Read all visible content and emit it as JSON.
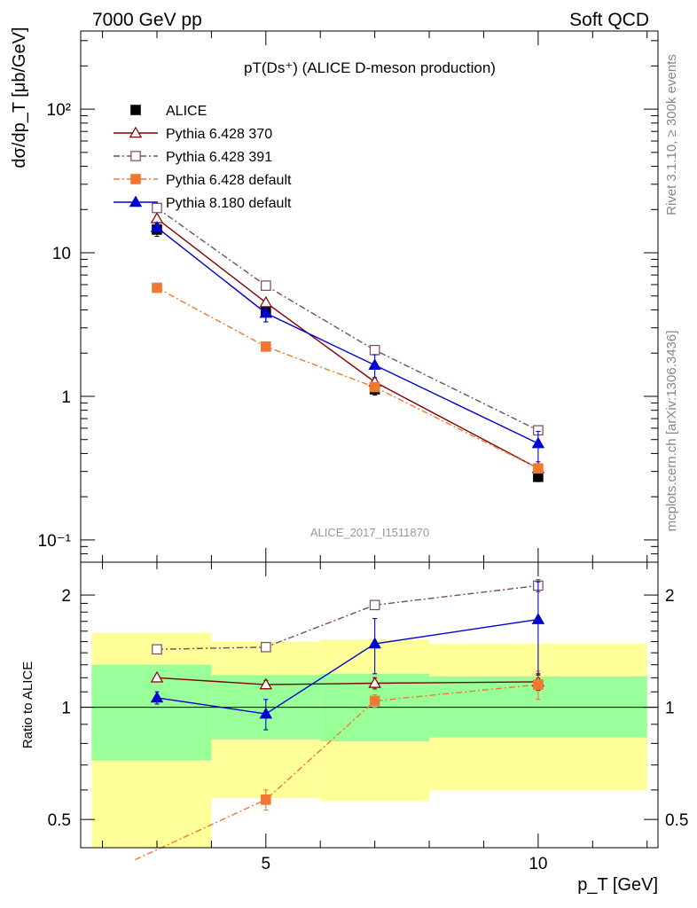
{
  "header": {
    "left": "7000 GeV pp",
    "right": "Soft QCD"
  },
  "side_labels": {
    "top": "Rivet 3.1.10, ≥ 300k events",
    "bottom": "mcplots.cern.ch [arXiv:1306.3436]"
  },
  "chart_data": [
    {
      "type": "line",
      "title": "pT(Ds⁺) (ALICE D-meson production)",
      "ylabel": "dσ/dp_T [μb/GeV]",
      "yscale": "log",
      "ylim": [
        0.07,
        350
      ],
      "xlim": [
        1.6,
        12.2
      ],
      "grid": false,
      "legend_position": "top-left",
      "watermark": "ALICE_2017_I1511870",
      "y_ticks": [
        {
          "value": 100,
          "label": "10²"
        },
        {
          "value": 10,
          "label": "10"
        },
        {
          "value": 1,
          "label": "1"
        },
        {
          "value": 0.1,
          "label": "10⁻¹"
        }
      ],
      "series": [
        {
          "name": "ALICE",
          "color": "#000000",
          "marker": "filled-square",
          "line": "none",
          "x": [
            3,
            5,
            7,
            10
          ],
          "values": [
            14.5,
            3.9,
            1.12,
            0.275
          ],
          "err_low": [
            1.5,
            0.6,
            0.1,
            0.02
          ],
          "err_high": [
            1.5,
            0.6,
            0.1,
            0.02
          ]
        },
        {
          "name": "Pythia 6.428 370",
          "color": "#800000",
          "marker": "open-triangle",
          "line": "solid",
          "x": [
            3,
            5,
            7,
            10
          ],
          "values": [
            17.3,
            4.5,
            1.26,
            0.315
          ],
          "err_low": [
            0.3,
            0.15,
            0.05,
            0.02
          ],
          "err_high": [
            0.3,
            0.15,
            0.05,
            0.02
          ]
        },
        {
          "name": "Pythia 6.428 391",
          "color": "#7a4a5e",
          "marker": "open-square",
          "line": "dashdot",
          "x": [
            3,
            5,
            7,
            10
          ],
          "values": [
            20.5,
            5.9,
            2.1,
            0.58
          ],
          "err_low": [
            0.3,
            0.15,
            0.05,
            0.03
          ],
          "err_high": [
            0.3,
            0.15,
            0.05,
            0.03
          ]
        },
        {
          "name": "Pythia 6.428 default",
          "color": "#f07830",
          "marker": "filled-square",
          "line": "dashdot",
          "x": [
            3,
            5,
            7,
            10
          ],
          "values": [
            5.7,
            2.22,
            1.16,
            0.315
          ],
          "err_low": [
            0.15,
            0.12,
            0.05,
            0.02
          ],
          "err_high": [
            0.15,
            0.12,
            0.05,
            0.02
          ]
        },
        {
          "name": "Pythia 8.180 default",
          "color": "#0000d0",
          "marker": "filled-triangle",
          "line": "solid",
          "x": [
            3,
            5,
            7,
            10
          ],
          "values": [
            15.0,
            3.8,
            1.65,
            0.47
          ],
          "err_low": [
            0.3,
            0.5,
            0.3,
            0.12
          ],
          "err_high": [
            0.3,
            0.3,
            0.3,
            0.1
          ]
        }
      ]
    },
    {
      "type": "line",
      "ylabel": "Ratio to ALICE",
      "xlabel": "p_T [GeV]",
      "yscale": "log",
      "ylim": [
        0.42,
        2.45
      ],
      "xlim": [
        1.6,
        12.2
      ],
      "grid": false,
      "x_ticks": [
        {
          "value": 5,
          "label": "5"
        },
        {
          "value": 10,
          "label": "10"
        }
      ],
      "y_ticks": [
        {
          "value": 2,
          "label": "2"
        },
        {
          "value": 1,
          "label": "1"
        },
        {
          "value": 0.5,
          "label": "0.5"
        }
      ],
      "reference_line": 1,
      "bands": [
        {
          "x0": 1.8,
          "x1": 4.0,
          "yellow": [
            0.4,
            1.58
          ],
          "green": [
            0.72,
            1.3
          ]
        },
        {
          "x0": 4.0,
          "x1": 6.0,
          "yellow": [
            0.57,
            1.5
          ],
          "green": [
            0.82,
            1.22
          ]
        },
        {
          "x0": 6.0,
          "x1": 8.0,
          "yellow": [
            0.56,
            1.52
          ],
          "green": [
            0.81,
            1.23
          ]
        },
        {
          "x0": 8.0,
          "x1": 12.0,
          "yellow": [
            0.6,
            1.48
          ],
          "green": [
            0.83,
            1.21
          ]
        }
      ],
      "series": [
        {
          "name": "Pythia 6.428 370",
          "color": "#800000",
          "marker": "open-triangle",
          "line": "solid",
          "x": [
            3,
            5,
            7,
            10
          ],
          "values": [
            1.2,
            1.15,
            1.16,
            1.17
          ],
          "err_low": [
            0.02,
            0.03,
            0.04,
            0.06
          ],
          "err_high": [
            0.02,
            0.03,
            0.04,
            0.06
          ]
        },
        {
          "name": "Pythia 6.428 391",
          "color": "#7a4a5e",
          "marker": "open-square",
          "line": "dashdot",
          "x": [
            3,
            5,
            7,
            10
          ],
          "values": [
            1.43,
            1.45,
            1.88,
            2.12
          ],
          "err_low": [
            0.02,
            0.03,
            0.05,
            0.08
          ],
          "err_high": [
            0.02,
            0.03,
            0.05,
            0.08
          ]
        },
        {
          "name": "Pythia 6.428 default",
          "color": "#f07830",
          "marker": "filled-square",
          "line": "dashdot",
          "x": [
            2.6,
            5,
            7,
            10
          ],
          "values": [
            0.39,
            0.565,
            1.04,
            1.15
          ],
          "err_low": [
            0.0,
            0.035,
            0.04,
            0.1
          ],
          "err_high": [
            0.0,
            0.035,
            0.04,
            0.1
          ]
        },
        {
          "name": "Pythia 8.180 default",
          "color": "#0000d0",
          "marker": "filled-triangle",
          "line": "solid",
          "x": [
            3,
            5,
            7,
            10
          ],
          "values": [
            1.06,
            0.96,
            1.48,
            1.72
          ],
          "err_low": [
            0.04,
            0.09,
            0.25,
            0.5
          ],
          "err_high": [
            0.04,
            0.09,
            0.25,
            0.45
          ]
        }
      ]
    }
  ]
}
